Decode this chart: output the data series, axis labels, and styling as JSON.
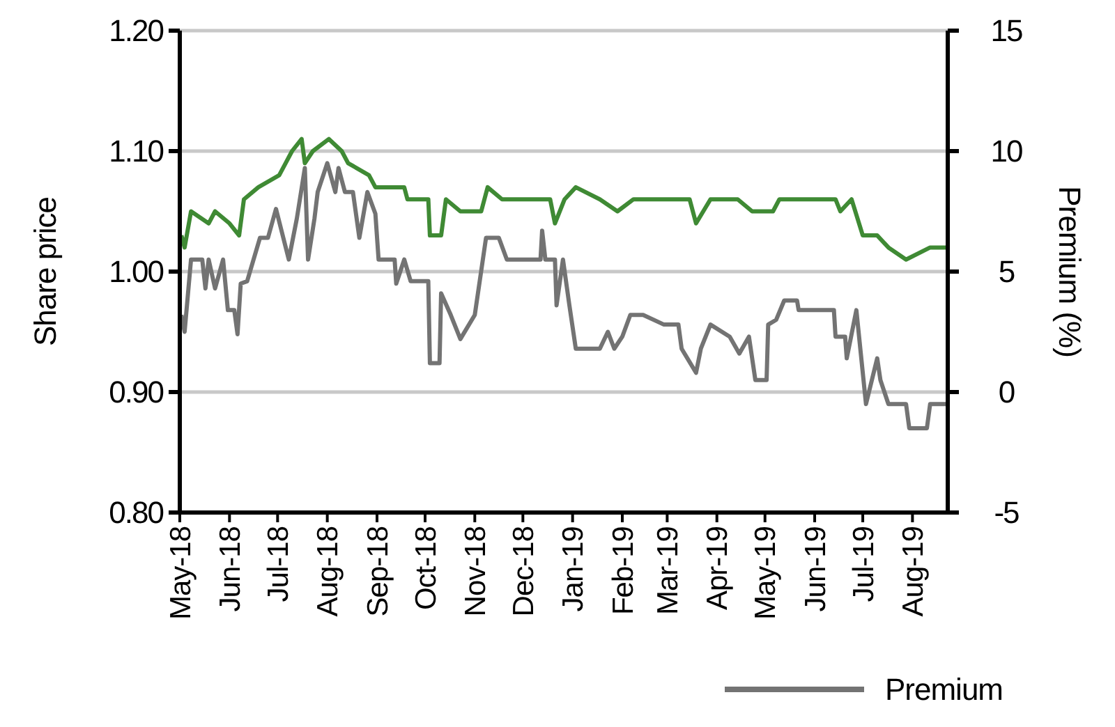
{
  "chart_data": {
    "type": "line",
    "ylabel": "Share price",
    "y2label": "Premium (%)",
    "xlim": [
      "2018-05-01",
      "2019-08-23"
    ],
    "xticks": [
      {
        "value": "2018-05-01",
        "label": "May-18"
      },
      {
        "value": "2018-06-01",
        "label": "Jun-18"
      },
      {
        "value": "2018-07-01",
        "label": "Jul-18"
      },
      {
        "value": "2018-08-01",
        "label": "Aug-18"
      },
      {
        "value": "2018-09-01",
        "label": "Sep-18"
      },
      {
        "value": "2018-10-01",
        "label": "Oct-18"
      },
      {
        "value": "2018-11-01",
        "label": "Nov-18"
      },
      {
        "value": "2018-12-01",
        "label": "Dec-18"
      },
      {
        "value": "2019-01-01",
        "label": "Jan-19"
      },
      {
        "value": "2019-02-01",
        "label": "Feb-19"
      },
      {
        "value": "2019-03-01",
        "label": "Mar-19"
      },
      {
        "value": "2019-04-01",
        "label": "Apr-19"
      },
      {
        "value": "2019-05-01",
        "label": "May-19"
      },
      {
        "value": "2019-06-01",
        "label": "Jun-19"
      },
      {
        "value": "2019-07-01",
        "label": "Jul-19"
      },
      {
        "value": "2019-08-01",
        "label": "Aug-19"
      }
    ],
    "ylim": [
      0.8,
      1.2
    ],
    "yticks": [
      {
        "value": 0.8,
        "label": "0.80"
      },
      {
        "value": 0.9,
        "label": "0.90"
      },
      {
        "value": 1.0,
        "label": "1.00"
      },
      {
        "value": 1.1,
        "label": "1.10"
      },
      {
        "value": 1.2,
        "label": "1.20"
      }
    ],
    "y2lim": [
      -5,
      15
    ],
    "y2ticks": [
      -5,
      0,
      5,
      10,
      15
    ],
    "grid": "y",
    "legend": "bottom",
    "series": [
      {
        "color": "#3f8a34",
        "x": [
          "2018-05-02",
          "2018-05-04",
          "2018-05-08",
          "2018-05-19",
          "2018-05-23",
          "2018-06-01",
          "2018-06-07",
          "2018-06-10",
          "2018-06-19",
          "2018-07-02",
          "2018-07-06",
          "2018-07-10",
          "2018-07-16",
          "2018-07-18",
          "2018-07-23",
          "2018-08-02",
          "2018-08-10",
          "2018-08-14",
          "2018-08-27",
          "2018-08-31",
          "2018-09-18",
          "2018-09-20",
          "2018-10-03",
          "2018-10-04",
          "2018-10-11",
          "2018-10-14",
          "2018-10-23",
          "2018-11-05",
          "2018-11-09",
          "2018-11-18",
          "2018-12-18",
          "2018-12-21",
          "2018-12-27",
          "2019-01-03",
          "2019-01-18",
          "2019-01-29",
          "2019-02-08",
          "2019-03-15",
          "2019-03-19",
          "2019-03-28",
          "2019-04-14",
          "2019-04-23",
          "2019-05-06",
          "2019-05-10",
          "2019-06-14",
          "2019-06-17",
          "2019-06-24",
          "2019-07-01",
          "2019-07-10",
          "2019-07-17",
          "2019-07-28",
          "2019-08-12",
          "2019-08-23"
        ],
        "values": [
          1.03,
          1.02,
          1.05,
          1.04,
          1.05,
          1.04,
          1.03,
          1.06,
          1.07,
          1.08,
          1.09,
          1.1,
          1.11,
          1.09,
          1.1,
          1.11,
          1.1,
          1.09,
          1.08,
          1.07,
          1.07,
          1.06,
          1.06,
          1.03,
          1.03,
          1.06,
          1.05,
          1.05,
          1.07,
          1.06,
          1.06,
          1.04,
          1.06,
          1.07,
          1.06,
          1.05,
          1.06,
          1.06,
          1.04,
          1.06,
          1.06,
          1.05,
          1.05,
          1.06,
          1.06,
          1.05,
          1.06,
          1.03,
          1.03,
          1.02,
          1.01,
          1.02,
          1.02
        ]
      },
      {
        "name": "Premium",
        "color": "#737373",
        "axis": "y2",
        "x": [
          "2018-05-02",
          "2018-05-04",
          "2018-05-08",
          "2018-05-15",
          "2018-05-17",
          "2018-05-19",
          "2018-05-23",
          "2018-05-28",
          "2018-05-31",
          "2018-06-04",
          "2018-06-06",
          "2018-06-08",
          "2018-06-12",
          "2018-06-20",
          "2018-06-25",
          "2018-06-30",
          "2018-07-08",
          "2018-07-13",
          "2018-07-18",
          "2018-07-20",
          "2018-07-24",
          "2018-07-26",
          "2018-08-01",
          "2018-08-06",
          "2018-08-08",
          "2018-08-12",
          "2018-08-17",
          "2018-08-21",
          "2018-08-26",
          "2018-08-31",
          "2018-09-02",
          "2018-09-12",
          "2018-09-13",
          "2018-09-18",
          "2018-09-22",
          "2018-10-03",
          "2018-10-04",
          "2018-10-10",
          "2018-10-11",
          "2018-10-17",
          "2018-10-23",
          "2018-11-01",
          "2018-11-08",
          "2018-11-16",
          "2018-11-21",
          "2018-12-12",
          "2018-12-13",
          "2018-12-15",
          "2018-12-21",
          "2018-12-22",
          "2018-12-26",
          "2018-12-30",
          "2019-01-03",
          "2019-01-18",
          "2019-01-23",
          "2019-01-27",
          "2019-02-01",
          "2019-02-06",
          "2019-02-14",
          "2019-02-27",
          "2019-03-08",
          "2019-03-10",
          "2019-03-19",
          "2019-03-22",
          "2019-03-28",
          "2019-04-09",
          "2019-04-15",
          "2019-04-21",
          "2019-04-25",
          "2019-05-02",
          "2019-05-03",
          "2019-05-08",
          "2019-05-13",
          "2019-05-21",
          "2019-05-22",
          "2019-06-03",
          "2019-06-13",
          "2019-06-14",
          "2019-06-20",
          "2019-06-21",
          "2019-06-27",
          "2019-07-03",
          "2019-07-10",
          "2019-07-12",
          "2019-07-17",
          "2019-07-28",
          "2019-07-30",
          "2019-08-10",
          "2019-08-12",
          "2019-08-23"
        ],
        "values": [
          3.2,
          2.5,
          5.5,
          5.5,
          4.3,
          5.5,
          4.3,
          5.5,
          3.4,
          3.4,
          2.4,
          4.5,
          4.6,
          6.4,
          6.4,
          7.6,
          5.5,
          7.2,
          9.3,
          5.5,
          7.2,
          8.3,
          9.5,
          8.3,
          9.3,
          8.3,
          8.3,
          6.4,
          8.3,
          7.4,
          5.5,
          5.5,
          4.5,
          5.5,
          4.6,
          4.6,
          1.2,
          1.2,
          4.1,
          3.2,
          2.2,
          3.2,
          6.4,
          6.4,
          5.5,
          5.5,
          6.7,
          5.5,
          5.5,
          3.6,
          5.5,
          3.6,
          1.8,
          1.8,
          2.5,
          1.8,
          2.3,
          3.2,
          3.2,
          2.8,
          2.8,
          1.8,
          0.8,
          1.8,
          2.8,
          2.3,
          1.6,
          2.3,
          0.5,
          0.5,
          2.8,
          3.0,
          3.8,
          3.8,
          3.4,
          3.4,
          3.4,
          2.3,
          2.3,
          1.4,
          3.4,
          -0.5,
          1.4,
          0.5,
          -0.5,
          -0.5,
          -1.5,
          -1.5,
          -0.5,
          -0.5
        ]
      }
    ]
  }
}
